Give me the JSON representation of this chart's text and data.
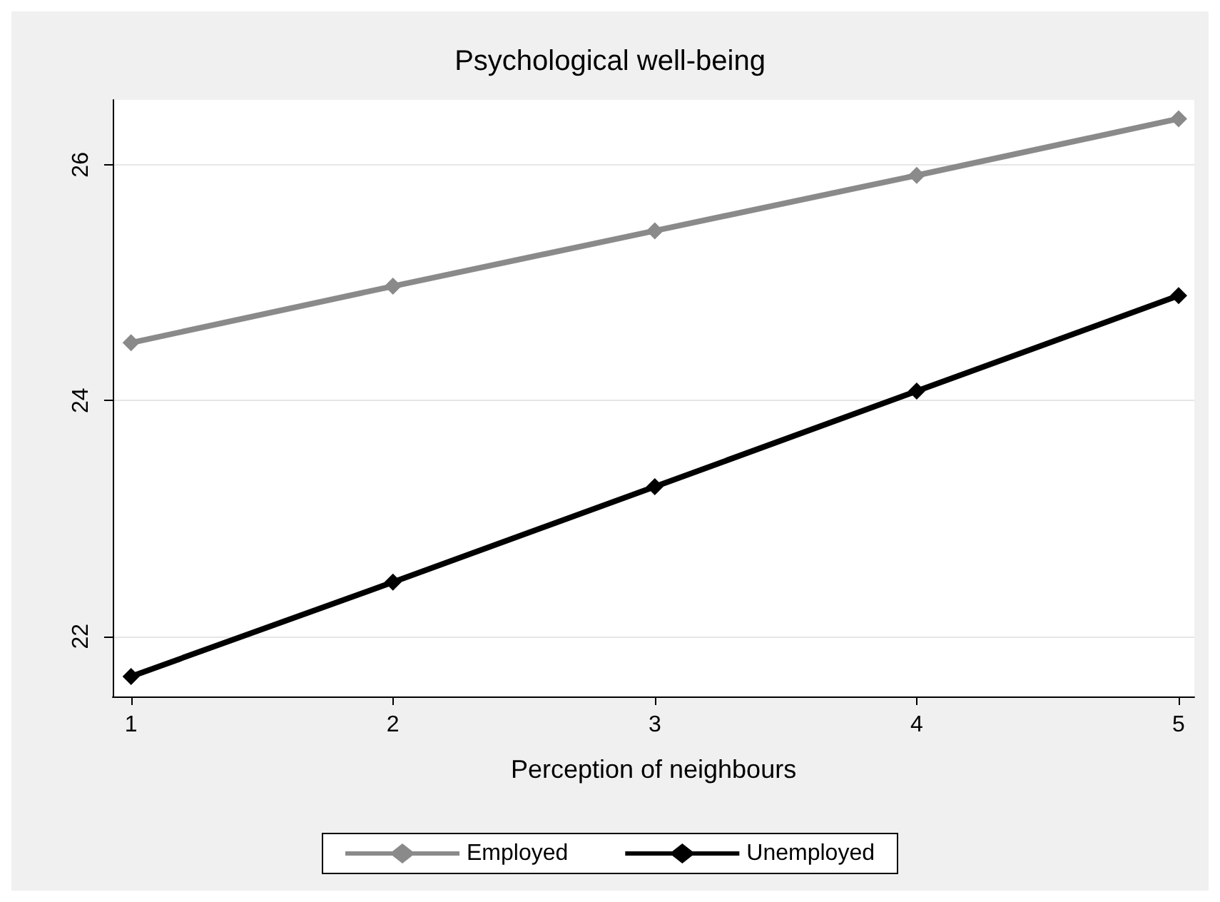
{
  "chart_data": {
    "type": "line",
    "title": "Psychological well-being",
    "xlabel": "Perception of neighbours",
    "x": [
      1,
      2,
      3,
      4,
      5
    ],
    "series": [
      {
        "name": "Employed",
        "color": "#8a8a8a",
        "values": [
          24.49,
          24.97,
          25.44,
          25.91,
          26.39
        ]
      },
      {
        "name": "Unemployed",
        "color": "#000000",
        "values": [
          21.66,
          22.46,
          23.27,
          24.08,
          24.89
        ]
      }
    ],
    "xlim": [
      0.93,
      5.06
    ],
    "xticks": [
      1,
      2,
      3,
      4,
      5
    ],
    "ylim": [
      21.49,
      26.55
    ],
    "yticks": [
      22,
      24,
      26
    ],
    "grid": "y",
    "legend": "bottom",
    "marker": "diamond",
    "line_style": "solid"
  }
}
